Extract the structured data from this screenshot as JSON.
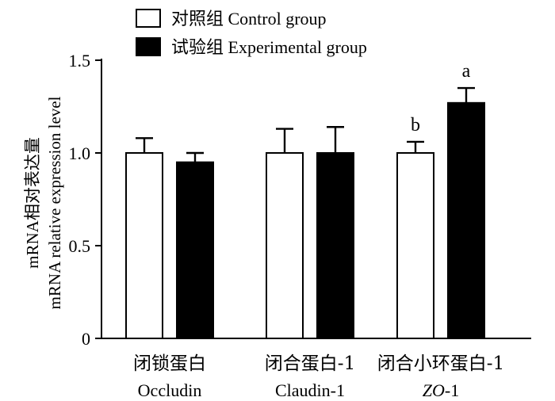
{
  "chart_data": {
    "type": "bar",
    "title": "",
    "ylabel_line1": "mRNA相对表达量",
    "ylabel_line2": "mRNA relative expression level",
    "xlabel": "",
    "ylim": [
      0,
      1.5
    ],
    "yticks": [
      "0",
      "0.5",
      "1.0",
      "1.5"
    ],
    "grid": false,
    "legend_position": "top-left",
    "categories": [
      {
        "cn": "闭锁蛋白",
        "en": "Occludin",
        "en_italic": false,
        "en_suffix": ""
      },
      {
        "cn": "闭合蛋白-1",
        "en": "Claudin-1",
        "en_italic": false,
        "en_suffix": ""
      },
      {
        "cn": "闭合小环蛋白-1",
        "en": "ZO",
        "en_italic": true,
        "en_suffix": "-1"
      }
    ],
    "series": [
      {
        "name": "对照组 Control group",
        "fill": "#ffffff",
        "values": [
          1.0,
          1.0,
          1.0
        ],
        "errors": [
          0.08,
          0.13,
          0.06
        ],
        "labels": [
          "",
          "",
          "b"
        ]
      },
      {
        "name": "试验组 Experimental group",
        "fill": "#000000",
        "values": [
          0.95,
          1.0,
          1.27
        ],
        "errors": [
          0.05,
          0.14,
          0.08
        ],
        "labels": [
          "",
          "",
          "a"
        ]
      }
    ]
  }
}
